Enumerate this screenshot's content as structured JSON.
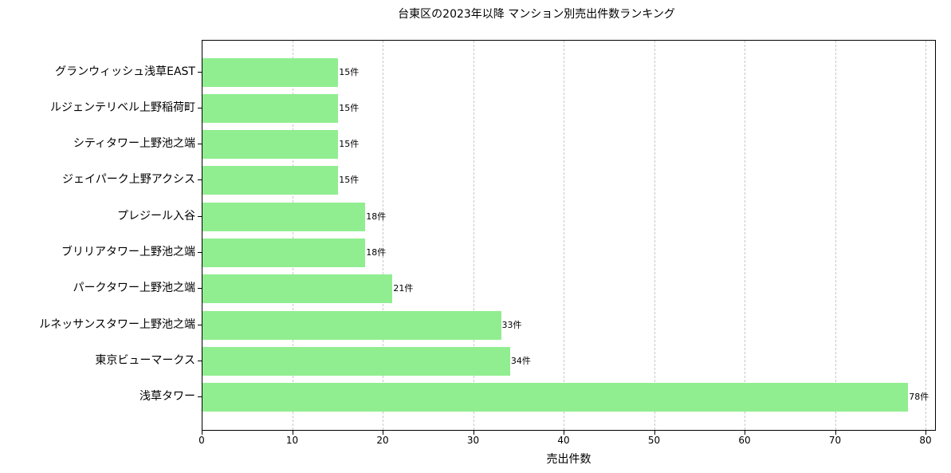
{
  "chart_data": {
    "type": "bar",
    "orientation": "horizontal",
    "title": "台東区の2023年以降 マンション別売出件数ランキング",
    "xlabel": "売出件数",
    "ylabel": "",
    "xlim": [
      0,
      82
    ],
    "xticks": [
      0,
      10,
      20,
      30,
      40,
      50,
      60,
      70,
      80
    ],
    "grid": {
      "x": true,
      "y": false,
      "style": "dashed"
    },
    "bar_color": "#90ee90",
    "value_suffix": "件",
    "categories": [
      "グランウィッシュ浅草EAST",
      "ルジェンテリベル上野稲荷町",
      "シティタワー上野池之端",
      "ジェイパーク上野アクシス",
      "プレジール入谷",
      "ブリリアタワー上野池之端",
      "パークタワー上野池之端",
      "ルネッサンスタワー上野池之端",
      "東京ビューマークス",
      "浅草タワー"
    ],
    "values": [
      15,
      15,
      15,
      15,
      18,
      18,
      21,
      33,
      34,
      78
    ],
    "value_labels": [
      "15件",
      "15件",
      "15件",
      "15件",
      "18件",
      "18件",
      "21件",
      "33件",
      "34件",
      "78件"
    ]
  }
}
